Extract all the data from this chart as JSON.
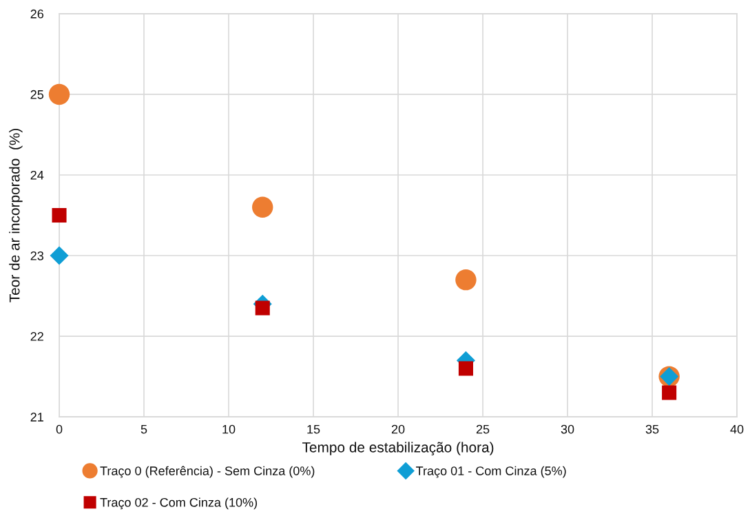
{
  "chart_data": {
    "type": "scatter",
    "xlabel": "Tempo de estabilização (hora)",
    "ylabel": "Teor de ar incorporado  (%)",
    "x": [
      0,
      12,
      24,
      36
    ],
    "series": [
      {
        "name": "Traço 0 (Referência) - Sem Cinza (0%)",
        "color": "#ed7d31",
        "marker": "circle",
        "values": [
          25.0,
          23.6,
          22.7,
          21.5
        ]
      },
      {
        "name": "Traço 01 - Com Cinza (5%)",
        "color": "#0f9ed5",
        "marker": "diamond",
        "values": [
          23.0,
          22.4,
          21.7,
          21.5
        ]
      },
      {
        "name": "Traço 02 - Com Cinza (10%)",
        "color": "#c00000",
        "marker": "square",
        "values": [
          23.5,
          22.35,
          21.6,
          21.3
        ]
      }
    ],
    "xlim": [
      0,
      40
    ],
    "xticks": [
      0,
      5,
      10,
      15,
      20,
      25,
      30,
      35,
      40
    ],
    "ylim": [
      21,
      26
    ],
    "yticks": [
      21,
      22,
      23,
      24,
      25,
      26
    ],
    "grid": true,
    "legend": "bottom"
  }
}
